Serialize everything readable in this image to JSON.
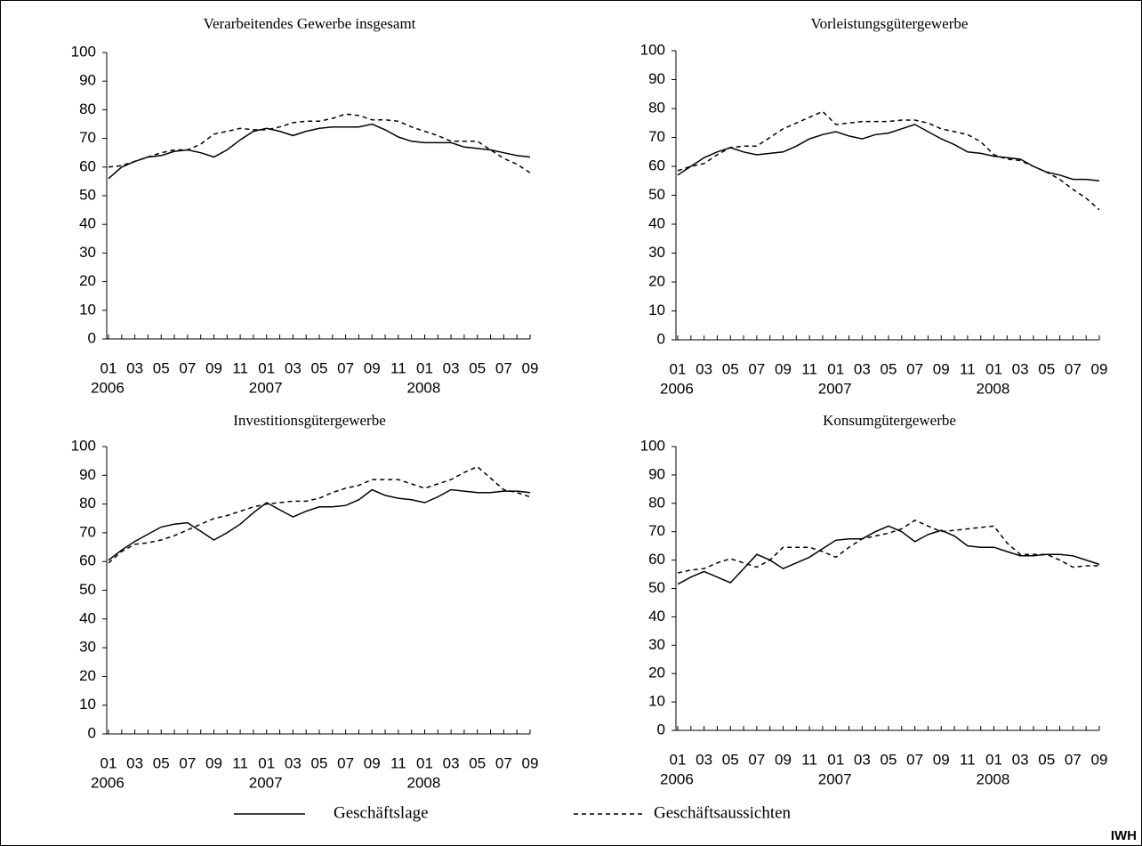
{
  "chart_data": [
    {
      "type": "line",
      "title": "Verarbeitendes Gewerbe insgesamt",
      "categories": [
        "01",
        null,
        "03",
        null,
        "05",
        null,
        "07",
        null,
        "09",
        null,
        "11",
        null,
        "01",
        null,
        "03",
        null,
        "05",
        null,
        "07",
        null,
        "09",
        null,
        "11",
        null,
        "01",
        null,
        "03",
        null,
        "05",
        null,
        "07",
        null,
        "09"
      ],
      "years": [
        "2006",
        "2007",
        "2008"
      ],
      "ylim": [
        0,
        100
      ],
      "yticks": [
        0,
        10,
        20,
        30,
        40,
        50,
        60,
        70,
        80,
        90,
        100
      ],
      "series": [
        {
          "style": "solid",
          "color": "#000000",
          "values": [
            56,
            60,
            62,
            63.5,
            64,
            65.5,
            66,
            65,
            63.5,
            66,
            69.5,
            72.5,
            73.5,
            72.5,
            71,
            72.5,
            73.5,
            74,
            74,
            74,
            75,
            73,
            70.5,
            69,
            68.5,
            68.5,
            68.5,
            67,
            66.5,
            66,
            65,
            64,
            63.5
          ]
        },
        {
          "style": "dashed",
          "color": "#000000",
          "values": [
            60,
            60.5,
            62,
            63.5,
            65,
            66,
            66,
            68,
            71.5,
            72.5,
            73.5,
            73,
            73,
            74,
            75.5,
            76,
            76,
            77,
            78.5,
            78,
            76.5,
            76.5,
            76,
            74,
            72.5,
            71,
            69,
            69,
            69,
            66,
            63,
            61,
            58
          ]
        }
      ]
    },
    {
      "type": "line",
      "title": "Vorleistungsgütergewerbe",
      "categories": [
        "01",
        null,
        "03",
        null,
        "05",
        null,
        "07",
        null,
        "09",
        null,
        "11",
        null,
        "01",
        null,
        "03",
        null,
        "05",
        null,
        "07",
        null,
        "09",
        null,
        "11",
        null,
        "01",
        null,
        "03",
        null,
        "05",
        null,
        "07",
        null,
        "09"
      ],
      "years": [
        "2006",
        "2007",
        "2008"
      ],
      "ylim": [
        0,
        100
      ],
      "yticks": [
        0,
        10,
        20,
        30,
        40,
        50,
        60,
        70,
        80,
        90,
        100
      ],
      "series": [
        {
          "style": "solid",
          "color": "#000000",
          "values": [
            57,
            60,
            63,
            65,
            66.5,
            65,
            64,
            64.5,
            65,
            67,
            69.5,
            71,
            72,
            70.5,
            69.5,
            71,
            71.5,
            73,
            74.5,
            72,
            69.5,
            67.5,
            65,
            64.5,
            63.5,
            63,
            62.5,
            60,
            58,
            57,
            55.5,
            55.5,
            55
          ]
        },
        {
          "style": "dashed",
          "color": "#000000",
          "values": [
            58.5,
            60,
            61,
            64,
            66.5,
            67,
            67,
            70,
            73,
            75,
            77,
            79,
            74.5,
            75,
            75.5,
            75.5,
            75.5,
            76,
            76,
            75,
            73,
            72,
            71,
            68.5,
            64,
            62.5,
            62,
            60,
            58,
            55.5,
            52,
            49,
            45
          ]
        }
      ]
    },
    {
      "type": "line",
      "title": "Investitionsgütergewerbe",
      "categories": [
        "01",
        null,
        "03",
        null,
        "05",
        null,
        "07",
        null,
        "09",
        null,
        "11",
        null,
        "01",
        null,
        "03",
        null,
        "05",
        null,
        "07",
        null,
        "09",
        null,
        "11",
        null,
        "01",
        null,
        "03",
        null,
        "05",
        null,
        "07",
        null,
        "09"
      ],
      "years": [
        "2006",
        "2007",
        "2008"
      ],
      "ylim": [
        0,
        100
      ],
      "yticks": [
        0,
        10,
        20,
        30,
        40,
        50,
        60,
        70,
        80,
        90,
        100
      ],
      "series": [
        {
          "style": "solid",
          "color": "#000000",
          "values": [
            60.5,
            64,
            67,
            69.5,
            72,
            73,
            73.5,
            70.5,
            67.5,
            70,
            73,
            77,
            80.5,
            78,
            75.5,
            77.5,
            79,
            79,
            79.5,
            81.5,
            85,
            83,
            82,
            81.5,
            80.5,
            82.5,
            85,
            84.5,
            84,
            84,
            84.5,
            84.5,
            84
          ]
        },
        {
          "style": "dashed",
          "color": "#000000",
          "values": [
            59.5,
            63.5,
            66,
            66.5,
            67.5,
            69,
            71,
            73,
            75,
            76,
            77.5,
            79,
            80,
            80.5,
            81,
            81,
            82,
            84,
            85.5,
            86.5,
            88.5,
            88.5,
            88.5,
            87,
            85.5,
            87,
            88.5,
            91,
            93,
            89,
            85,
            84,
            82.5
          ]
        }
      ]
    },
    {
      "type": "line",
      "title": "Konsumgütergewerbe",
      "categories": [
        "01",
        null,
        "03",
        null,
        "05",
        null,
        "07",
        null,
        "09",
        null,
        "11",
        null,
        "01",
        null,
        "03",
        null,
        "05",
        null,
        "07",
        null,
        "09",
        null,
        "11",
        null,
        "01",
        null,
        "03",
        null,
        "05",
        null,
        "07",
        null,
        "09"
      ],
      "years": [
        "2006",
        "2007",
        "2008"
      ],
      "ylim": [
        0,
        100
      ],
      "yticks": [
        0,
        10,
        20,
        30,
        40,
        50,
        60,
        70,
        80,
        90,
        100
      ],
      "series": [
        {
          "style": "solid",
          "color": "#000000",
          "values": [
            51.5,
            54,
            56,
            54,
            52,
            57,
            62,
            60,
            57,
            59,
            61,
            64,
            67,
            67.5,
            67.5,
            70,
            72,
            70,
            66.5,
            69,
            70.5,
            68.5,
            65,
            64.5,
            64.5,
            63,
            61.5,
            61.5,
            62,
            62,
            61.5,
            60,
            58.5
          ]
        },
        {
          "style": "dashed",
          "color": "#000000",
          "values": [
            55.5,
            56.5,
            57,
            59,
            60.5,
            59,
            57.5,
            60,
            64.5,
            64.5,
            64.5,
            63,
            61,
            64.5,
            67.5,
            68.5,
            69.5,
            71,
            74,
            72,
            70,
            70.5,
            71,
            71.5,
            72,
            66,
            62,
            62,
            62,
            60,
            57.5,
            58,
            58
          ]
        }
      ]
    }
  ],
  "legend": [
    {
      "name": "Geschäftslage",
      "style": "solid"
    },
    {
      "name": "Geschäftsaussichten",
      "style": "dashed"
    }
  ],
  "source": "IWH"
}
